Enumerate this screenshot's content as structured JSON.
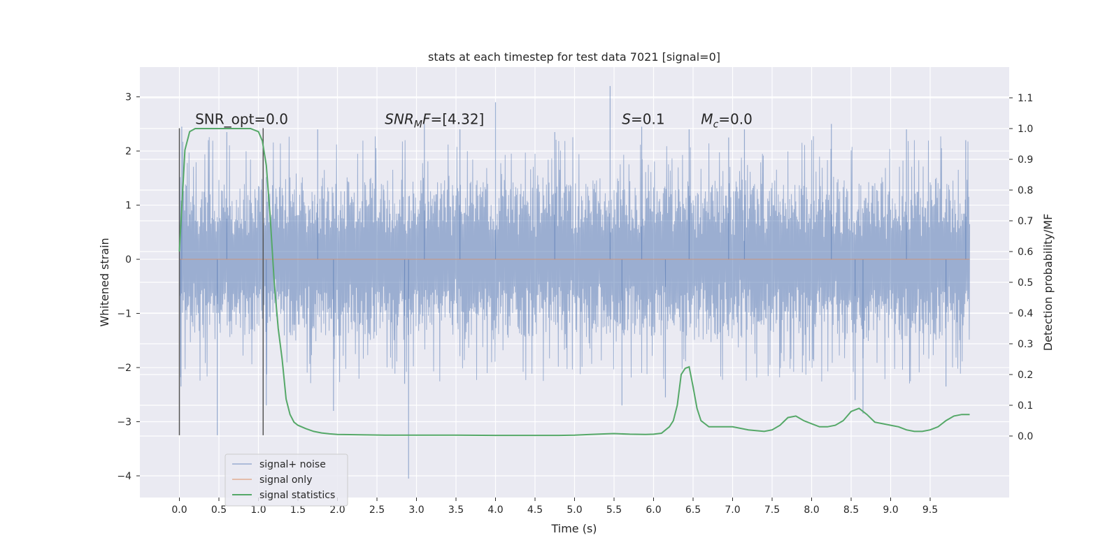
{
  "chart_data": {
    "type": "line",
    "title": "stats at each timestep for test data 7021 [signal=0]",
    "xlabel": "Time (s)",
    "ylabel_left": "Whitened strain",
    "ylabel_right": "Detection probability/MF",
    "xlim": [
      -0.5,
      10.5
    ],
    "ylim_left": [
      -4.4,
      3.55
    ],
    "ylim_right": [
      -0.2,
      1.2
    ],
    "x_ticks": [
      0.0,
      0.5,
      1.0,
      1.5,
      2.0,
      2.5,
      3.0,
      3.5,
      4.0,
      4.5,
      5.0,
      5.5,
      6.0,
      6.5,
      7.0,
      7.5,
      8.0,
      8.5,
      9.0,
      9.5
    ],
    "x_tick_labels": [
      "0.0",
      "0.5",
      "1.0",
      "1.5",
      "2.0",
      "2.5",
      "3.0",
      "3.5",
      "4.0",
      "4.5",
      "5.0",
      "5.5",
      "6.0",
      "6.5",
      "7.0",
      "7.5",
      "8.0",
      "8.5",
      "9.0",
      "9.5"
    ],
    "y_left_ticks": [
      -4,
      -3,
      -2,
      -1,
      0,
      1,
      2,
      3
    ],
    "y_left_tick_labels": [
      "−4",
      "−3",
      "−2",
      "−1",
      "0",
      "1",
      "2",
      "3"
    ],
    "y_right_ticks": [
      0.0,
      0.1,
      0.2,
      0.3,
      0.4,
      0.5,
      0.6,
      0.7,
      0.8,
      0.9,
      1.0,
      1.1
    ],
    "y_right_tick_labels": [
      "0.0",
      "0.1",
      "0.2",
      "0.3",
      "0.4",
      "0.5",
      "0.6",
      "0.7",
      "0.8",
      "0.9",
      "1.0",
      "1.1"
    ],
    "grid": true,
    "legend_placement": "lower-left",
    "annotations": [
      {
        "text": "SNR_opt=0.0",
        "x": 0.2,
        "y": 2.5
      },
      {
        "text": "SNR_MF=[4.32]",
        "x": 2.6,
        "y": 2.5
      },
      {
        "text": "S=0.1",
        "x": 5.6,
        "y": 2.5
      },
      {
        "text": "M_c=0.0",
        "x": 6.6,
        "y": 2.5
      }
    ],
    "vertical_lines": {
      "x": [
        0.0,
        1.06
      ],
      "y_range": [
        -3.25,
        2.42
      ],
      "color": "#555555"
    },
    "series": [
      {
        "name": "signal+ noise",
        "axis": "left",
        "color": "#4c72b0",
        "kind": "noise",
        "x_range": [
          0.0,
          10.0
        ],
        "typical_envelope": [
          -1.6,
          1.6
        ],
        "spikes": [
          {
            "x": 0.03,
            "y": 2.45
          },
          {
            "x": 0.02,
            "y": -2.35
          },
          {
            "x": 0.48,
            "y": -3.25
          },
          {
            "x": 0.6,
            "y": 2.35
          },
          {
            "x": 1.1,
            "y": -2.7
          },
          {
            "x": 1.75,
            "y": 2.4
          },
          {
            "x": 1.95,
            "y": -2.8
          },
          {
            "x": 2.9,
            "y": -4.05
          },
          {
            "x": 2.85,
            "y": -2.3
          },
          {
            "x": 3.1,
            "y": 2.5
          },
          {
            "x": 3.55,
            "y": 2.4
          },
          {
            "x": 4.0,
            "y": 2.9
          },
          {
            "x": 4.75,
            "y": 2.35
          },
          {
            "x": 5.45,
            "y": 3.2
          },
          {
            "x": 5.6,
            "y": -2.7
          },
          {
            "x": 5.85,
            "y": 2.45
          },
          {
            "x": 6.15,
            "y": -2.55
          },
          {
            "x": 6.45,
            "y": 2.4
          },
          {
            "x": 6.95,
            "y": 2.25
          },
          {
            "x": 7.15,
            "y": 2.4
          },
          {
            "x": 8.25,
            "y": 2.5
          },
          {
            "x": 8.65,
            "y": -2.85
          },
          {
            "x": 8.55,
            "y": -2.6
          },
          {
            "x": 9.2,
            "y": 2.4
          },
          {
            "x": 9.7,
            "y": -2.35
          },
          {
            "x": 9.95,
            "y": 2.2
          }
        ]
      },
      {
        "name": "signal only",
        "axis": "left",
        "color": "#dd8452",
        "x": [
          0.0,
          10.0
        ],
        "y": [
          0.0,
          0.0
        ]
      },
      {
        "name": "signal statistics",
        "axis": "right",
        "color": "#55a868",
        "x": [
          0.0,
          0.07,
          0.13,
          0.2,
          0.3,
          0.5,
          0.7,
          0.9,
          1.0,
          1.05,
          1.1,
          1.15,
          1.2,
          1.25,
          1.3,
          1.35,
          1.4,
          1.45,
          1.5,
          1.6,
          1.7,
          1.8,
          1.9,
          2.0,
          2.3,
          2.6,
          3.0,
          3.5,
          4.0,
          4.5,
          4.8,
          5.0,
          5.2,
          5.4,
          5.5,
          5.7,
          5.9,
          6.0,
          6.1,
          6.2,
          6.25,
          6.3,
          6.35,
          6.4,
          6.45,
          6.5,
          6.55,
          6.6,
          6.7,
          6.8,
          7.0,
          7.2,
          7.4,
          7.5,
          7.6,
          7.7,
          7.8,
          7.9,
          8.0,
          8.1,
          8.2,
          8.3,
          8.4,
          8.5,
          8.6,
          8.7,
          8.8,
          8.9,
          9.0,
          9.1,
          9.2,
          9.3,
          9.4,
          9.5,
          9.6,
          9.7,
          9.8,
          9.9,
          10.0
        ],
        "y": [
          0.6,
          0.93,
          0.99,
          1.0,
          1.0,
          1.0,
          1.0,
          1.0,
          0.99,
          0.96,
          0.88,
          0.71,
          0.5,
          0.35,
          0.25,
          0.12,
          0.07,
          0.045,
          0.035,
          0.024,
          0.015,
          0.01,
          0.007,
          0.005,
          0.004,
          0.003,
          0.003,
          0.003,
          0.002,
          0.002,
          0.002,
          0.003,
          0.005,
          0.007,
          0.008,
          0.006,
          0.005,
          0.006,
          0.009,
          0.03,
          0.05,
          0.1,
          0.2,
          0.22,
          0.225,
          0.16,
          0.09,
          0.05,
          0.03,
          0.03,
          0.03,
          0.02,
          0.015,
          0.02,
          0.035,
          0.06,
          0.065,
          0.05,
          0.04,
          0.03,
          0.03,
          0.035,
          0.05,
          0.08,
          0.09,
          0.07,
          0.045,
          0.04,
          0.035,
          0.03,
          0.02,
          0.015,
          0.015,
          0.02,
          0.03,
          0.05,
          0.065,
          0.07,
          0.07
        ]
      }
    ]
  }
}
